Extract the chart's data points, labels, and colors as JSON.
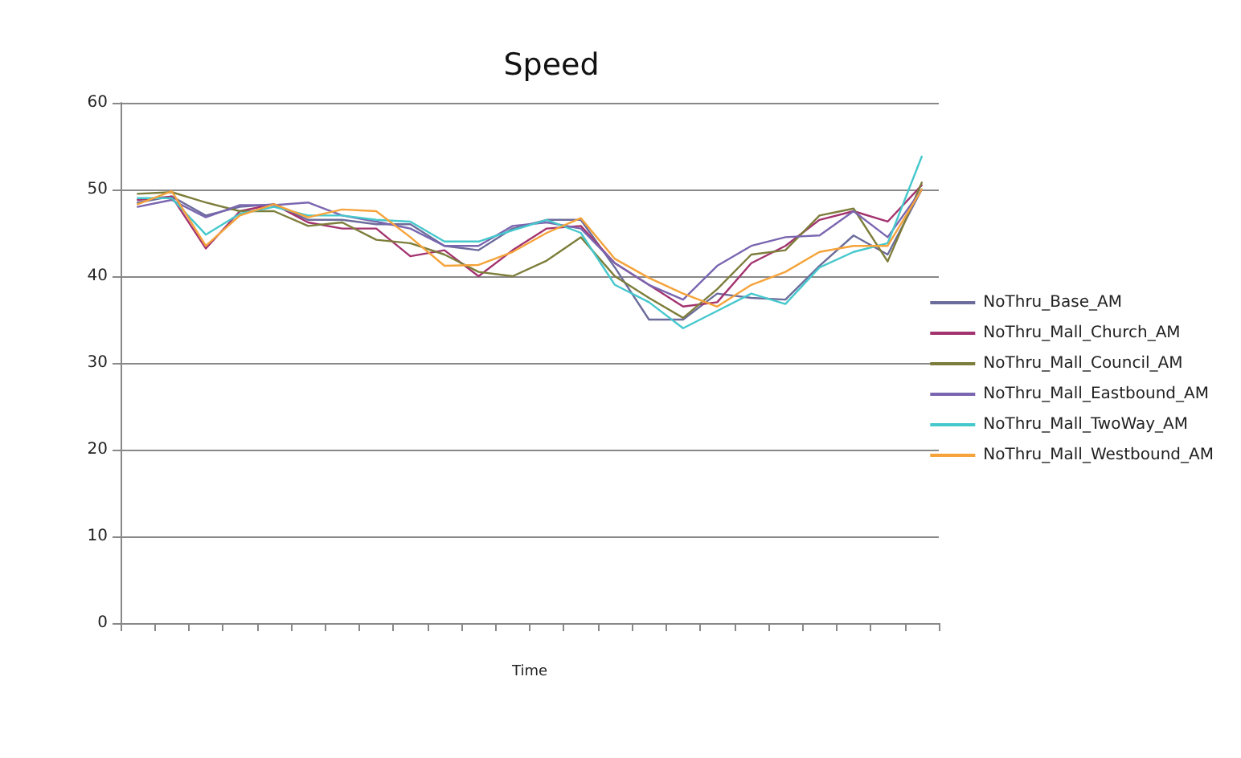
{
  "chart_data": {
    "type": "line",
    "title": "Speed",
    "xlabel": "Time",
    "categories": [
      null,
      null,
      null,
      null,
      null,
      null,
      null,
      null,
      null,
      null,
      null,
      null,
      null,
      null,
      null,
      null,
      null,
      null,
      null,
      null,
      null,
      null,
      null,
      null
    ],
    "series": [
      {
        "name": "NoThru_Base_AM",
        "color": "#6c6c9c",
        "values": [
          48.5,
          49.2,
          47,
          48,
          48.3,
          46.5,
          46.5,
          46,
          46,
          43.5,
          43,
          45.5,
          46.5,
          46.5,
          41,
          35,
          35,
          38,
          37.5,
          37.3,
          41.2,
          44.7,
          42.5,
          50
        ]
      },
      {
        "name": "NoThru_Mall_Church_AM",
        "color": "#a3336f",
        "values": [
          48.8,
          49.2,
          43.2,
          47.5,
          48.3,
          46.2,
          45.5,
          45.5,
          42.3,
          43,
          40,
          43,
          45.5,
          45.8,
          41.5,
          39,
          36.5,
          37,
          41.5,
          43.5,
          46.5,
          47.5,
          46.3,
          50.5
        ]
      },
      {
        "name": "NoThru_Mall_Council_AM",
        "color": "#7d7d3b",
        "values": [
          49.5,
          49.7,
          48.5,
          47.5,
          47.5,
          45.8,
          46.2,
          44.2,
          43.8,
          42.5,
          40.5,
          40,
          41.8,
          44.5,
          40,
          37.5,
          35.2,
          38.5,
          42.5,
          43,
          47,
          47.8,
          41.7,
          50.8
        ]
      },
      {
        "name": "NoThru_Mall_Eastbound_AM",
        "color": "#7a66b0",
        "values": [
          48,
          48.8,
          46.8,
          48.2,
          48.2,
          48.5,
          47,
          46.3,
          45.5,
          43.5,
          43.5,
          45.8,
          46.2,
          45.5,
          41.5,
          39,
          37.3,
          41.2,
          43.5,
          44.5,
          44.7,
          47.5,
          44.5,
          50
        ]
      },
      {
        "name": "NoThru_Mall_TwoWay_AM",
        "color": "#45c8cc",
        "values": [
          49,
          49,
          44.8,
          47.2,
          48,
          47,
          47,
          46.5,
          46.3,
          44,
          44,
          45.3,
          46.5,
          45,
          39,
          37,
          34,
          36,
          38,
          36.8,
          41,
          42.8,
          43.8,
          53.8
        ]
      },
      {
        "name": "NoThru_Mall_Westbound_AM",
        "color": "#f5a33a",
        "values": [
          48.3,
          49.8,
          43.5,
          47,
          48.3,
          46.8,
          47.7,
          47.5,
          44.5,
          41.2,
          41.3,
          42.8,
          45,
          46.7,
          42,
          39.8,
          38,
          36.5,
          39,
          40.5,
          42.8,
          43.5,
          43.5,
          50
        ]
      }
    ],
    "ylim": [
      0,
      60
    ],
    "yticks": [
      0,
      10,
      20,
      30,
      40,
      50,
      60
    ],
    "grid": "y",
    "legend": "right",
    "marker": "none"
  }
}
